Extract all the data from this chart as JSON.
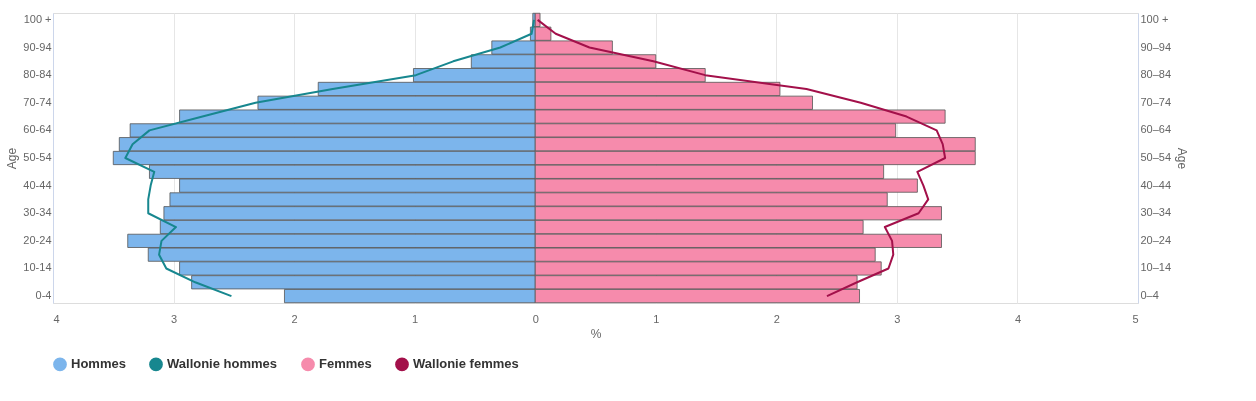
{
  "chart_data": {
    "type": "bar",
    "orientation": "horizontal",
    "xlabel": "%",
    "ylabel": "Age",
    "y2label": "Age",
    "categories": [
      "100 +",
      null,
      "90-94",
      null,
      "80-84",
      null,
      "70-74",
      null,
      "60-64",
      null,
      "50-54",
      null,
      "40-44",
      null,
      "30-34",
      null,
      "20-24",
      null,
      "10-14",
      null,
      "0-4"
    ],
    "y2_categories": [
      "100 +",
      null,
      "90–94",
      null,
      "80–84",
      null,
      "70–74",
      null,
      "60–64",
      null,
      "50–54",
      null,
      "40–44",
      null,
      "30–34",
      null,
      "20–24",
      null,
      "10–14",
      null,
      "0–4"
    ],
    "xlim": [
      -4,
      5
    ],
    "xticks": [
      {
        "value": -4,
        "label": "4"
      },
      {
        "value": -3,
        "label": "3"
      },
      {
        "value": -2,
        "label": "2"
      },
      {
        "value": -1,
        "label": "1"
      },
      0,
      1,
      2,
      3,
      4,
      5
    ],
    "grid": "x",
    "legend": "bottom",
    "stacked": true,
    "series": [
      {
        "name": "Hommes",
        "color": "#7cb5ec",
        "values": [
          -0.02,
          -0.04,
          -0.36,
          -0.53,
          -1.01,
          -1.8,
          -2.3,
          -2.95,
          -3.36,
          -3.45,
          -3.5,
          -3.2,
          -2.95,
          -3.03,
          -3.08,
          -3.11,
          -3.38,
          -3.21,
          -2.95,
          -2.85,
          -2.08
        ]
      },
      {
        "name": "Wallonie hommes",
        "type": "line",
        "color": "#17878f",
        "values": [
          -0.01,
          -0.03,
          -0.29,
          -0.68,
          -0.99,
          -1.68,
          -2.32,
          -2.76,
          -3.2,
          -3.34,
          -3.4,
          -3.16,
          -3.19,
          -3.21,
          -3.21,
          -2.98,
          -3.1,
          -3.12,
          -3.06,
          -2.82,
          -2.52
        ]
      },
      {
        "name": "Femmes",
        "color": "#f68bac",
        "values": [
          0.04,
          0.13,
          0.64,
          1.0,
          1.41,
          2.03,
          2.3,
          3.4,
          2.99,
          3.65,
          3.65,
          2.89,
          3.17,
          2.92,
          3.37,
          2.72,
          3.37,
          2.82,
          2.87,
          2.67,
          2.69
        ]
      },
      {
        "name": "Wallonie femmes",
        "type": "line",
        "color": "#a3104a",
        "values": [
          0.02,
          0.17,
          0.45,
          0.98,
          1.41,
          2.25,
          2.7,
          3.08,
          3.33,
          3.38,
          3.4,
          3.17,
          3.22,
          3.26,
          3.18,
          2.9,
          2.96,
          2.97,
          2.93,
          2.67,
          2.42
        ]
      }
    ]
  }
}
